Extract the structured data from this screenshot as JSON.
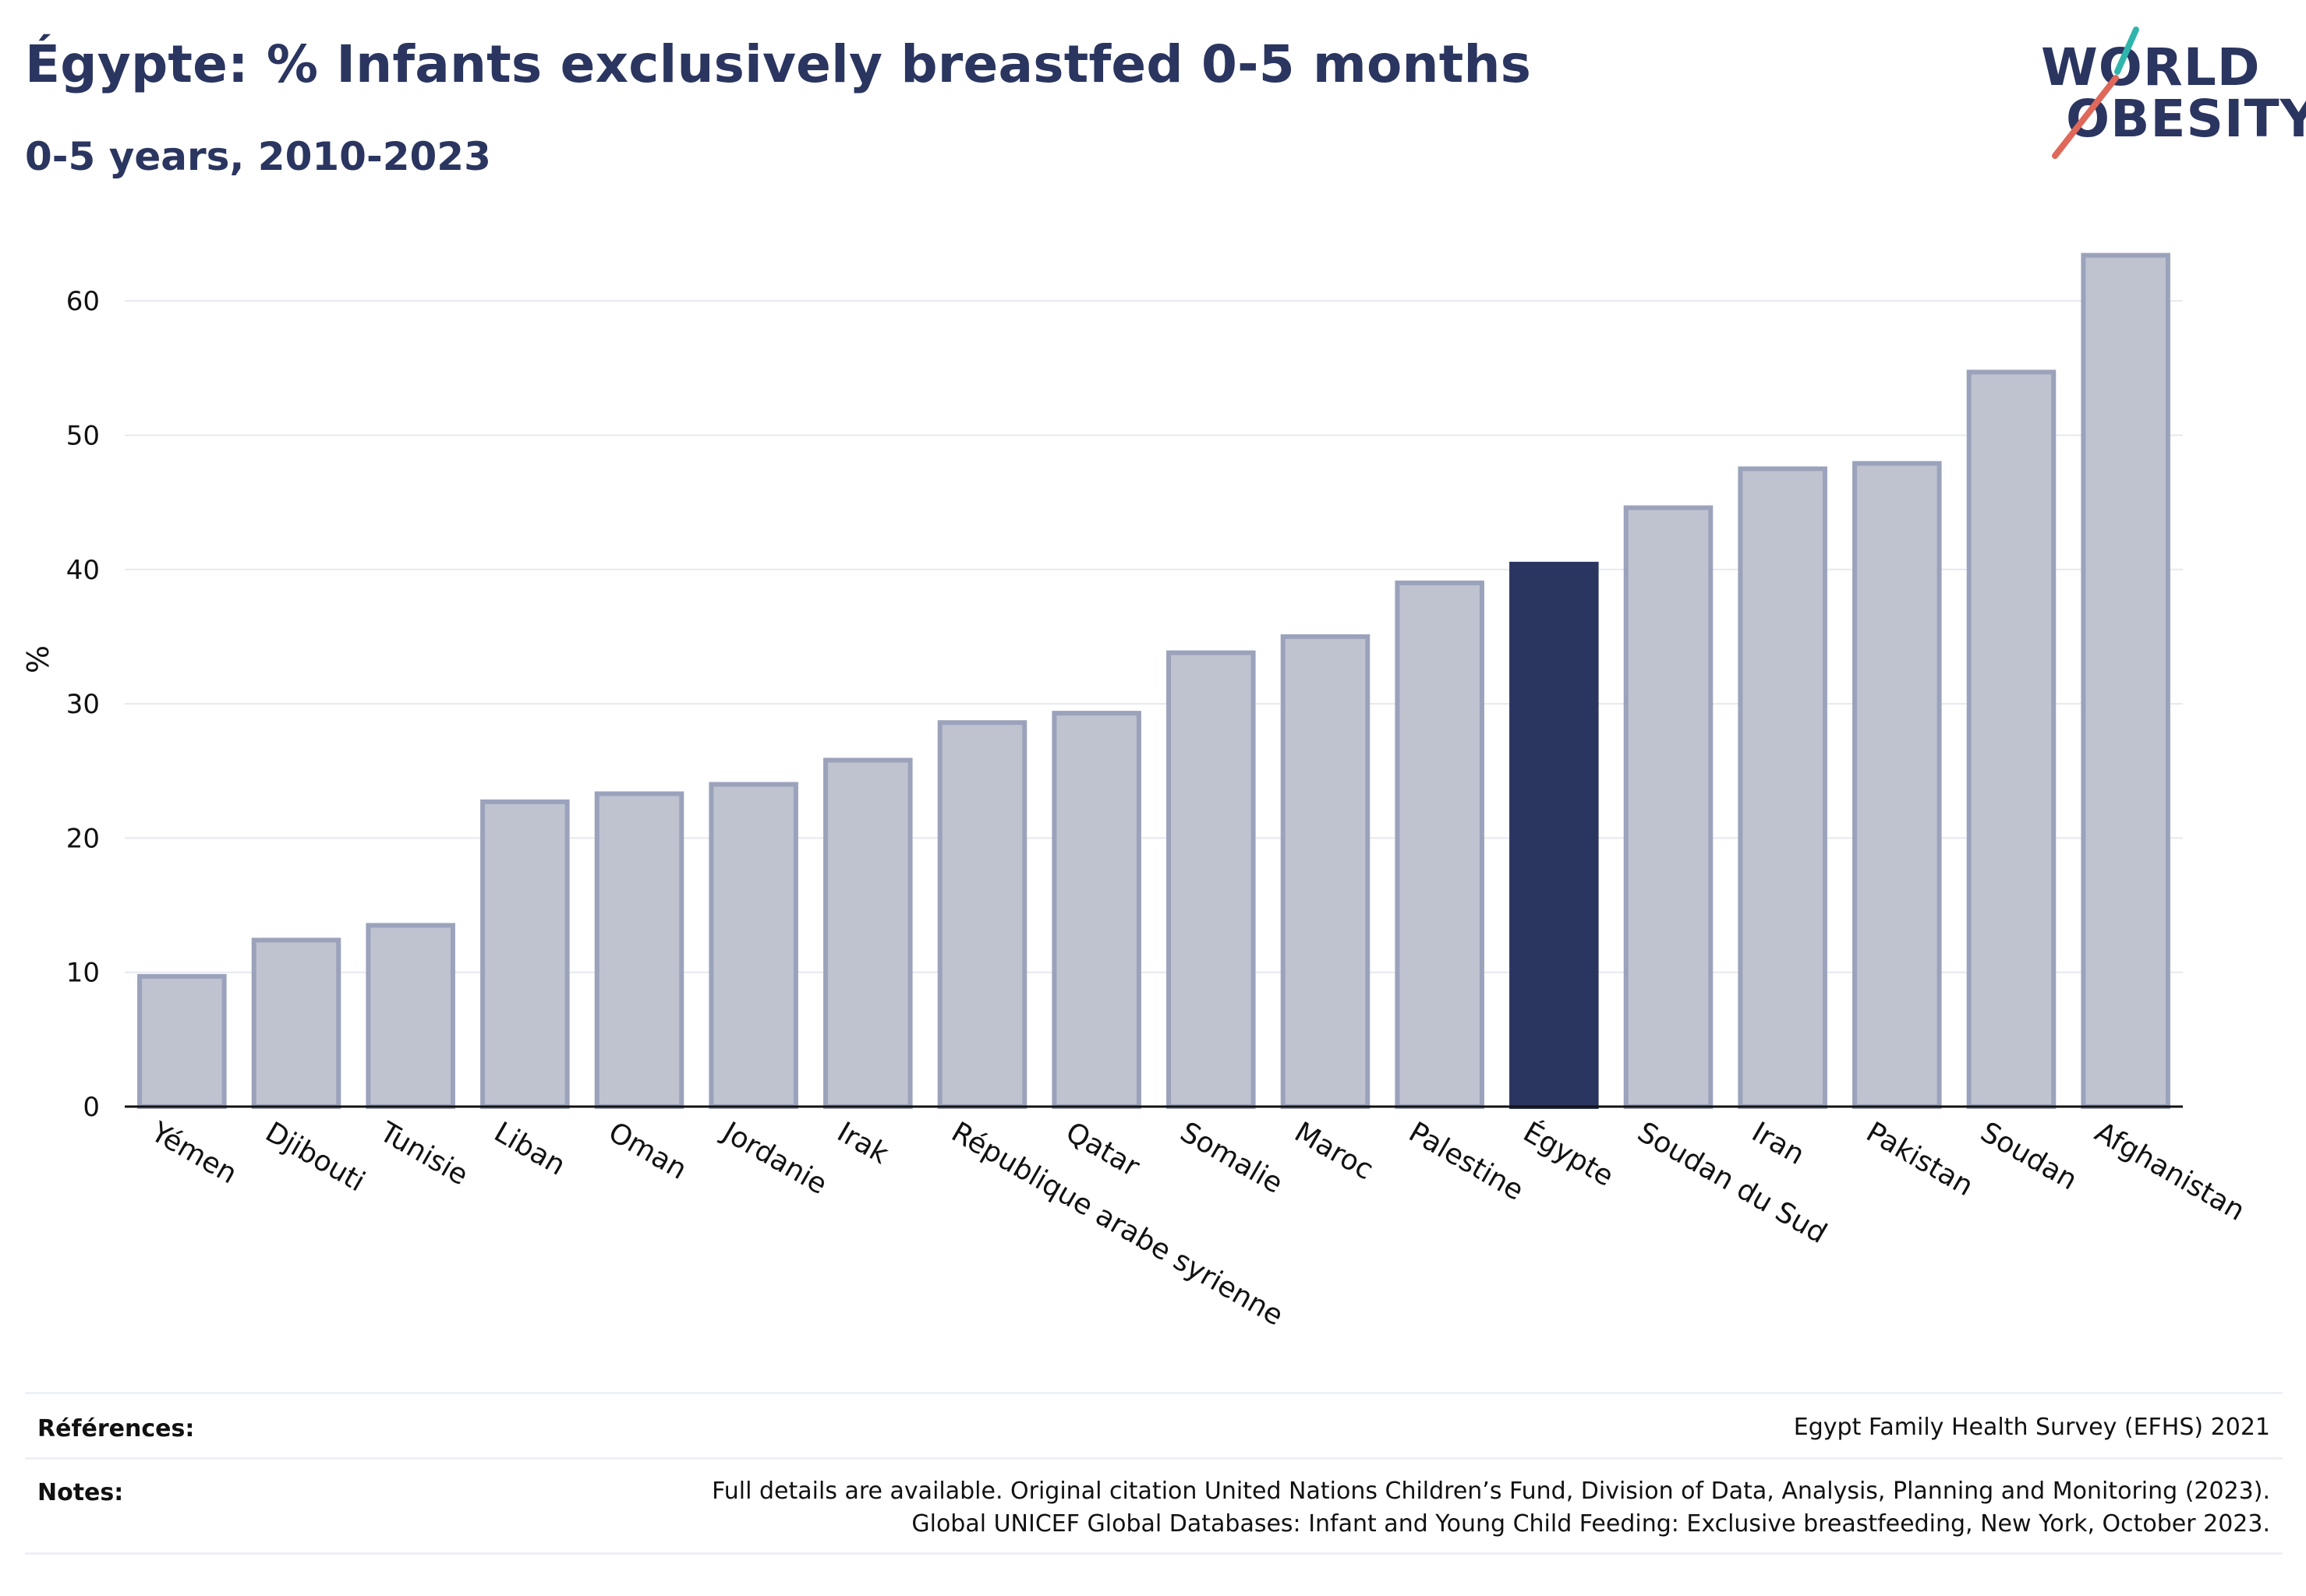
{
  "title": "Égypte: % Infants exclusively breastfed 0-5 months",
  "subtitle": "0-5 years, 2010-2023",
  "logo": {
    "line1": "WORLD",
    "line2": "OBESITY",
    "accent_teal": "#2fb5ac",
    "accent_red": "#e0685a"
  },
  "colors": {
    "bar_default": "#bfc3d0",
    "bar_border": "#9ba2bb",
    "bar_highlight": "#2a3560",
    "axis": "#111111",
    "grid": "#e6e8ef"
  },
  "chart_data": {
    "type": "bar",
    "ylabel": "%",
    "xlabel": "",
    "ylim": [
      0,
      65
    ],
    "yticks": [
      0,
      10,
      20,
      30,
      40,
      50,
      60
    ],
    "grid": true,
    "categories": [
      "Yémen",
      "Djibouti",
      "Tunisie",
      "Liban",
      "Oman",
      "Jordanie",
      "Irak",
      "République arabe syrienne",
      "Qatar",
      "Somalie",
      "Maroc",
      "Palestine",
      "Égypte",
      "Soudan du Sud",
      "Iran",
      "Pakistan",
      "Soudan",
      "Afghanistan"
    ],
    "values": [
      9.7,
      12.4,
      13.5,
      22.7,
      23.3,
      24.0,
      25.8,
      28.6,
      29.3,
      33.8,
      35.0,
      39.0,
      40.4,
      44.6,
      47.5,
      47.9,
      54.7,
      63.4
    ],
    "highlight": "Égypte"
  },
  "footer": {
    "references_label": "Références:",
    "references_value": "Egypt Family Health Survey (EFHS) 2021",
    "notes_label": "Notes:",
    "notes_line1": "Full details are available. Original citation United Nations Children’s Fund, Division of Data, Analysis, Planning and Monitoring (2023).",
    "notes_line2": "Global UNICEF Global Databases: Infant and Young Child Feeding: Exclusive breastfeeding, New York, October 2023."
  }
}
